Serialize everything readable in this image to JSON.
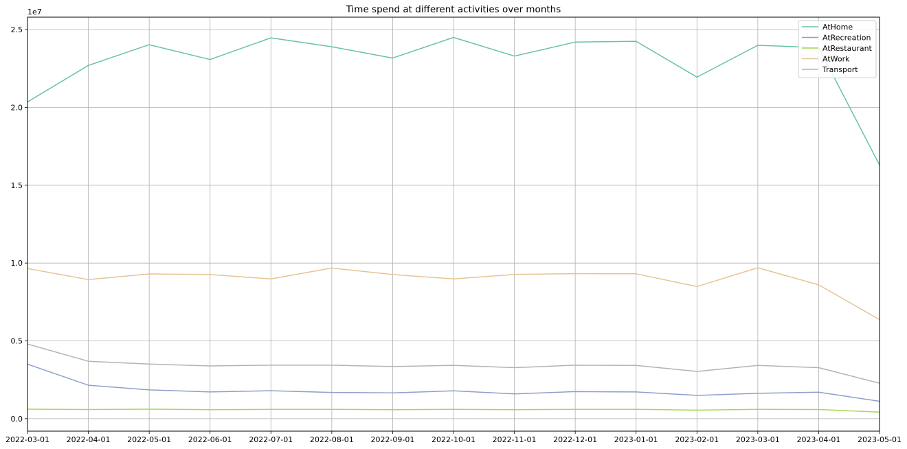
{
  "chart_data": {
    "type": "line",
    "title": "Time spend at different activities over months",
    "xlabel": "",
    "ylabel": "",
    "y_scale_label": "1e7",
    "x": [
      "2022-03-01",
      "2022-04-01",
      "2022-05-01",
      "2022-06-01",
      "2022-07-01",
      "2022-08-01",
      "2022-09-01",
      "2022-10-01",
      "2022-11-01",
      "2022-12-01",
      "2023-01-01",
      "2023-02-01",
      "2023-03-01",
      "2023-04-01",
      "2023-05-01"
    ],
    "y_ticks": [
      0,
      5000000,
      10000000,
      15000000,
      20000000,
      25000000
    ],
    "y_tick_labels": [
      "0.0",
      "0.5",
      "1.0",
      "1.5",
      "2.0",
      "2.5"
    ],
    "ylim": [
      -800000,
      25800000
    ],
    "grid": true,
    "legend_position": "top-right",
    "series": [
      {
        "name": "AtHome",
        "color": "#66c2a5",
        "values": [
          20350000,
          22700000,
          24030000,
          23080000,
          24470000,
          23900000,
          23170000,
          24500000,
          23300000,
          24200000,
          24250000,
          21950000,
          23990000,
          23850000,
          16300000
        ]
      },
      {
        "name": "AtRecreation",
        "color": "#8da0cb",
        "values": [
          3500000,
          2150000,
          1850000,
          1720000,
          1800000,
          1690000,
          1660000,
          1790000,
          1590000,
          1740000,
          1720000,
          1500000,
          1630000,
          1700000,
          1120000
        ]
      },
      {
        "name": "AtRestaurant",
        "color": "#a6d854",
        "values": [
          610000,
          590000,
          610000,
          580000,
          600000,
          600000,
          580000,
          600000,
          580000,
          600000,
          600000,
          550000,
          600000,
          590000,
          420000
        ]
      },
      {
        "name": "AtWork",
        "color": "#e5c494",
        "values": [
          9650000,
          8940000,
          9300000,
          9260000,
          8980000,
          9680000,
          9260000,
          8980000,
          9270000,
          9320000,
          9310000,
          8490000,
          9700000,
          8600000,
          6370000
        ]
      },
      {
        "name": "Transport",
        "color": "#b3b3b3",
        "values": [
          4800000,
          3690000,
          3510000,
          3390000,
          3440000,
          3440000,
          3350000,
          3430000,
          3280000,
          3440000,
          3420000,
          3040000,
          3420000,
          3280000,
          2280000
        ]
      }
    ]
  }
}
